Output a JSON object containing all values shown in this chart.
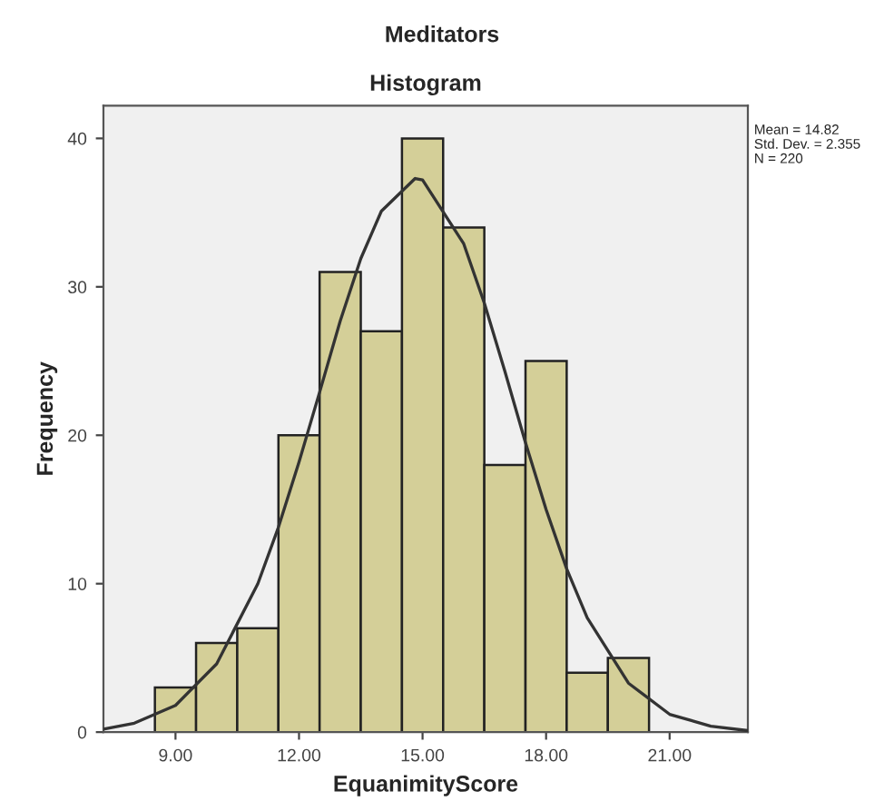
{
  "chart_data": {
    "type": "histogram",
    "title": "Meditators",
    "subtitle": "Histogram",
    "xlabel": "EquanimityScore",
    "ylabel": "Frequency",
    "series": [
      {
        "type": "histogram",
        "color": "#d4cf98",
        "bins": [
          8.5,
          9.5,
          10.5,
          11.5,
          12.5,
          13.5,
          14.5,
          15.5,
          16.5,
          17.5,
          18.5,
          19.5,
          20.5
        ],
        "values": [
          3,
          6,
          7,
          20,
          31,
          27,
          40,
          34,
          18,
          25,
          4,
          5
        ]
      },
      {
        "type": "line",
        "color": "#333333",
        "x": [
          7.25,
          8,
          9,
          10,
          11,
          11.5,
          12,
          12.5,
          13,
          13.5,
          14,
          14.82,
          15,
          16,
          16.5,
          17,
          17.5,
          18,
          18.5,
          19,
          20,
          21,
          22,
          22.9
        ],
        "values": [
          0.2,
          0.6,
          1.8,
          4.6,
          10.0,
          13.8,
          18.2,
          22.9,
          27.7,
          31.9,
          35.1,
          37.3,
          37.2,
          32.9,
          28.9,
          24.3,
          19.5,
          15.0,
          11.0,
          7.7,
          3.3,
          1.2,
          0.4,
          0.1
        ]
      }
    ],
    "xlim": [
      7.25,
      22.9
    ],
    "ylim": [
      0,
      42.2
    ],
    "xticks": [
      {
        "value": 9,
        "label": "9.00"
      },
      {
        "value": 12,
        "label": "12.00"
      },
      {
        "value": 15,
        "label": "15.00"
      },
      {
        "value": 18,
        "label": "18.00"
      },
      {
        "value": 21,
        "label": "21.00"
      }
    ],
    "yticks": [
      0,
      10,
      20,
      30,
      40
    ],
    "annotations": [
      "Mean = 14.82",
      "Std. Dev. = 2.355",
      "N = 220"
    ],
    "grid": false
  }
}
